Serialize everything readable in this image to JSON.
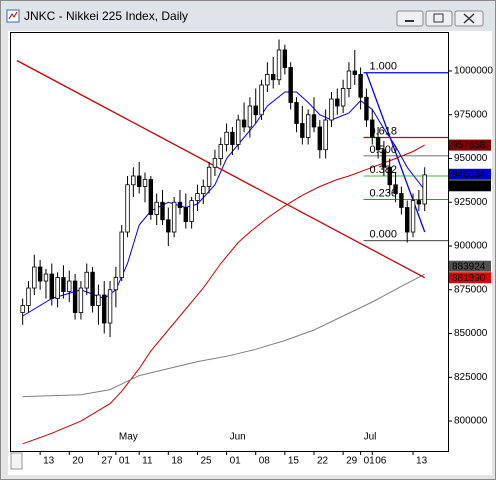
{
  "chart_data": {
    "type": "candlestick",
    "title": "JNKC - Nikkei 225 Index, Daily",
    "xlim": [
      -2,
      73
    ],
    "ylim": [
      782900,
      1021700
    ],
    "yticks": [
      800000,
      825000,
      850000,
      875000,
      900000,
      925000,
      950000,
      975000,
      1000000
    ],
    "xticks": [
      {
        "value": 3,
        "label": "13"
      },
      {
        "value": 8,
        "label": "20"
      },
      {
        "value": 13,
        "label": "27"
      },
      {
        "value": 16,
        "label": "01"
      },
      {
        "value": 20,
        "label": "11"
      },
      {
        "value": 25,
        "label": "18"
      },
      {
        "value": 30,
        "label": "25"
      },
      {
        "value": 35,
        "label": "01"
      },
      {
        "value": 40,
        "label": "08"
      },
      {
        "value": 45,
        "label": "15"
      },
      {
        "value": 50,
        "label": "22"
      },
      {
        "value": 55,
        "label": "29"
      },
      {
        "value": 58,
        "label": "01"
      },
      {
        "value": 60,
        "label": "06"
      },
      {
        "value": 67,
        "label": "13"
      }
    ],
    "month_labels": [
      {
        "value": 16,
        "label": "May"
      },
      {
        "value": 35,
        "label": "Jun"
      },
      {
        "value": 58,
        "label": "Jul"
      }
    ],
    "open": [
      862000,
      866000,
      876000,
      888000,
      880000,
      884000,
      870000,
      882000,
      874000,
      880000,
      862000,
      876000,
      885000,
      866000,
      872000,
      856000,
      875000,
      882000,
      908000,
      935000,
      940000,
      934000,
      938000,
      918000,
      925000,
      915000,
      908000,
      925000,
      922000,
      914000,
      926000,
      930000,
      934000,
      945000,
      950000,
      958000,
      965000,
      958000,
      972000,
      968000,
      980000,
      975000,
      992000,
      998000,
      995000,
      1012000,
      1002000,
      982000,
      970000,
      962000,
      975000,
      968000,
      955000,
      972000,
      984000,
      980000,
      990000,
      1000000,
      998000,
      985000,
      972000,
      962000,
      955000,
      945000,
      935000,
      930000,
      922000,
      908000,
      926000,
      924000
    ],
    "high": [
      870000,
      880000,
      895000,
      892000,
      887000,
      890000,
      885000,
      889000,
      886000,
      884000,
      880000,
      890000,
      888000,
      878000,
      880000,
      880000,
      888000,
      912000,
      940000,
      945000,
      948000,
      942000,
      940000,
      930000,
      932000,
      922000,
      928000,
      932000,
      930000,
      928000,
      935000,
      938000,
      948000,
      955000,
      962000,
      970000,
      968000,
      975000,
      982000,
      985000,
      990000,
      995000,
      1005000,
      1008000,
      1018000,
      1015000,
      1005000,
      985000,
      980000,
      978000,
      985000,
      972000,
      978000,
      988000,
      990000,
      995000,
      1005000,
      1012000,
      1002000,
      990000,
      978000,
      968000,
      960000,
      950000,
      942000,
      934000,
      926000,
      930000,
      932000,
      945000
    ],
    "low": [
      855000,
      862000,
      872000,
      875000,
      870000,
      866000,
      865000,
      870000,
      868000,
      858000,
      858000,
      872000,
      862000,
      855000,
      850000,
      848000,
      865000,
      880000,
      905000,
      928000,
      930000,
      925000,
      915000,
      912000,
      912000,
      900000,
      905000,
      918000,
      910000,
      910000,
      920000,
      924000,
      930000,
      940000,
      946000,
      954000,
      952000,
      955000,
      965000,
      962000,
      970000,
      972000,
      988000,
      990000,
      992000,
      998000,
      978000,
      965000,
      958000,
      958000,
      965000,
      950000,
      950000,
      968000,
      975000,
      976000,
      985000,
      992000,
      978000,
      968000,
      958000,
      950000,
      940000,
      930000,
      925000,
      918000,
      902000,
      905000,
      920000,
      920000
    ],
    "close": [
      866000,
      876000,
      888000,
      880000,
      884000,
      870000,
      882000,
      874000,
      880000,
      862000,
      876000,
      885000,
      866000,
      872000,
      856000,
      875000,
      882000,
      908000,
      935000,
      940000,
      934000,
      938000,
      918000,
      925000,
      915000,
      908000,
      925000,
      922000,
      914000,
      926000,
      930000,
      934000,
      945000,
      950000,
      958000,
      965000,
      958000,
      972000,
      968000,
      980000,
      975000,
      992000,
      998000,
      995000,
      1012000,
      1002000,
      982000,
      970000,
      962000,
      975000,
      968000,
      955000,
      972000,
      984000,
      980000,
      990000,
      1000000,
      998000,
      985000,
      972000,
      962000,
      955000,
      945000,
      935000,
      930000,
      922000,
      908000,
      926000,
      924000,
      940634
    ],
    "up_color": "#ffffff",
    "down_color": "#000000",
    "overlays": [
      {
        "color": "#0000ff",
        "x": [
          0,
          5,
          10,
          14,
          16,
          18,
          20,
          22,
          25,
          28,
          30,
          33,
          35,
          37,
          40,
          42,
          45,
          47,
          49,
          51,
          53,
          56,
          58,
          60,
          62,
          64,
          66,
          69
        ],
        "values": [
          860000,
          870000,
          875000,
          870000,
          875000,
          890000,
          912000,
          920000,
          925000,
          922000,
          924000,
          935000,
          950000,
          958000,
          970000,
          980000,
          988000,
          988000,
          982000,
          975000,
          972000,
          976000,
          983000,
          978000,
          967000,
          957000,
          945000,
          932000
        ]
      },
      {
        "color": "#cc0000",
        "x": [
          0,
          5,
          10,
          15,
          17,
          20,
          22,
          25,
          28,
          31,
          34,
          37,
          39,
          42,
          45,
          48,
          51,
          54,
          56,
          60,
          64,
          67,
          69
        ],
        "values": [
          787000,
          793000,
          800000,
          810000,
          817000,
          830000,
          840000,
          852000,
          864000,
          876000,
          890000,
          902000,
          908000,
          916000,
          923000,
          929000,
          934000,
          938000,
          940000,
          945000,
          950000,
          954000,
          957658
        ]
      },
      {
        "color": "#808080",
        "x": [
          0,
          10,
          15,
          20,
          25,
          30,
          35,
          40,
          45,
          50,
          55,
          60,
          65,
          69
        ],
        "values": [
          814000,
          815000,
          818000,
          826000,
          830000,
          834000,
          837000,
          841000,
          846000,
          852000,
          860000,
          868000,
          877000,
          883924
        ]
      },
      {
        "color": "#cc0000",
        "x": [
          -1,
          69
        ],
        "values": [
          1006000,
          881890
        ]
      },
      {
        "color": "#0000ff",
        "x": [
          59,
          69
        ],
        "values": [
          999000,
          908000
        ]
      }
    ],
    "fibo": {
      "start": 58.5,
      "levels": [
        {
          "label": "1.000",
          "value": 999000,
          "color": "#0000ff"
        },
        {
          "label": "0.618",
          "value": 962000,
          "color": "#cc0000"
        },
        {
          "label": "0.500",
          "value": 951500,
          "color": "#404040"
        },
        {
          "label": "0.382",
          "value": 940000,
          "color": "#00a000"
        },
        {
          "label": "0.236",
          "value": 926500,
          "color": "#cc0000"
        },
        {
          "label": "0.000",
          "value": 903000,
          "color": "#000000"
        }
      ]
    },
    "price_labels": [
      {
        "value": 957658,
        "color": "#800000"
      },
      {
        "value": 940634,
        "color": "#0000c8"
      },
      {
        "value": 934416,
        "color": "#000000"
      },
      {
        "value": 883924,
        "color": "#505050"
      },
      {
        "value": 881890,
        "color": "#dd0000"
      }
    ]
  }
}
